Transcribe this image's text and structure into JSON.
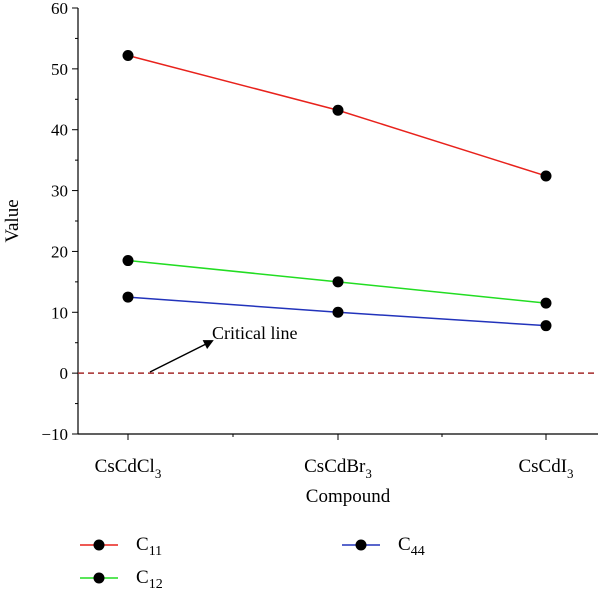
{
  "chart_data": {
    "type": "line",
    "categories": [
      "CsCdCl",
      "CsCdBr",
      "CsCdI"
    ],
    "category_subscripts": [
      "3",
      "3",
      "3"
    ],
    "series": [
      {
        "name": "C",
        "name_subscript": "11",
        "color": "#e8221c",
        "values": [
          52.2,
          43.2,
          32.4
        ]
      },
      {
        "name": "C",
        "name_subscript": "12",
        "color": "#22dd22",
        "values": [
          18.5,
          15.0,
          11.5
        ]
      },
      {
        "name": "C",
        "name_subscript": "44",
        "color": "#2233bb",
        "values": [
          12.5,
          10.0,
          7.8
        ]
      }
    ],
    "xlabel": "Compound",
    "ylabel": "Value",
    "ylim": [
      -10,
      60
    ],
    "yticks": [
      -10,
      0,
      10,
      20,
      30,
      40,
      50,
      60
    ],
    "grid": false,
    "legend_position": "bottom",
    "reference_line": {
      "y": 0,
      "style": "dashed",
      "color": "#a52a2a"
    },
    "annotation": {
      "text": "Critical line",
      "arrow": true
    }
  }
}
